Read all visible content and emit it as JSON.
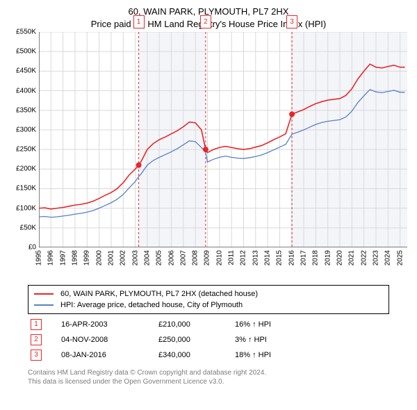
{
  "title_line1": "60, WAIN PARK, PLYMOUTH, PL7 2HX",
  "title_line2": "Price paid vs. HM Land Registry's House Price Index (HPI)",
  "title_fontsize": 13,
  "chart": {
    "type": "line",
    "background_color": "#ffffff",
    "grid_color": "#d9d9d9",
    "axis_line_color": "#000000",
    "tick_fontsize": 10,
    "x": {
      "min": 1995,
      "max": 2025.6,
      "ticks": [
        1995,
        1996,
        1997,
        1998,
        1999,
        2000,
        2001,
        2002,
        2003,
        2004,
        2005,
        2006,
        2007,
        2008,
        2009,
        2010,
        2011,
        2012,
        2013,
        2014,
        2015,
        2016,
        2017,
        2018,
        2019,
        2020,
        2021,
        2022,
        2023,
        2024,
        2025
      ],
      "tick_labels": [
        "1995",
        "1996",
        "1997",
        "1998",
        "1999",
        "2000",
        "2001",
        "2002",
        "2003",
        "2004",
        "2005",
        "2006",
        "2007",
        "2008",
        "2009",
        "2010",
        "2011",
        "2012",
        "2013",
        "2014",
        "2015",
        "2016",
        "2017",
        "2018",
        "2019",
        "2020",
        "2021",
        "2022",
        "2023",
        "2024",
        "2025"
      ]
    },
    "y": {
      "min": 0,
      "max": 550000,
      "ticks": [
        0,
        50000,
        100000,
        150000,
        200000,
        250000,
        300000,
        350000,
        400000,
        450000,
        500000,
        550000
      ],
      "tick_labels": [
        "£0",
        "£50K",
        "£100K",
        "£150K",
        "£200K",
        "£250K",
        "£300K",
        "£350K",
        "£400K",
        "£450K",
        "£500K",
        "£550K"
      ]
    },
    "series": [
      {
        "id": "property",
        "label": "60, WAIN PARK, PLYMOUTH, PL7 2HX (detached house)",
        "color": "#e8262a",
        "line_width": 1.6,
        "points": [
          [
            1995.0,
            100000
          ],
          [
            1995.5,
            101000
          ],
          [
            1996.0,
            98000
          ],
          [
            1996.5,
            100000
          ],
          [
            1997.0,
            102000
          ],
          [
            1997.5,
            105000
          ],
          [
            1998.0,
            108000
          ],
          [
            1998.5,
            110000
          ],
          [
            1999.0,
            113000
          ],
          [
            1999.5,
            118000
          ],
          [
            2000.0,
            125000
          ],
          [
            2000.5,
            133000
          ],
          [
            2001.0,
            140000
          ],
          [
            2001.5,
            150000
          ],
          [
            2002.0,
            165000
          ],
          [
            2002.5,
            185000
          ],
          [
            2003.0,
            200000
          ],
          [
            2003.29,
            210000
          ],
          [
            2003.5,
            220000
          ],
          [
            2004.0,
            250000
          ],
          [
            2004.5,
            265000
          ],
          [
            2005.0,
            275000
          ],
          [
            2005.5,
            282000
          ],
          [
            2006.0,
            290000
          ],
          [
            2006.5,
            298000
          ],
          [
            2007.0,
            308000
          ],
          [
            2007.5,
            320000
          ],
          [
            2008.0,
            318000
          ],
          [
            2008.5,
            300000
          ],
          [
            2008.85,
            250000
          ],
          [
            2009.0,
            242000
          ],
          [
            2009.5,
            250000
          ],
          [
            2010.0,
            255000
          ],
          [
            2010.5,
            258000
          ],
          [
            2011.0,
            255000
          ],
          [
            2011.5,
            252000
          ],
          [
            2012.0,
            250000
          ],
          [
            2012.5,
            252000
          ],
          [
            2013.0,
            256000
          ],
          [
            2013.5,
            260000
          ],
          [
            2014.0,
            267000
          ],
          [
            2014.5,
            275000
          ],
          [
            2015.0,
            282000
          ],
          [
            2015.5,
            290000
          ],
          [
            2016.02,
            340000
          ],
          [
            2016.5,
            346000
          ],
          [
            2017.0,
            352000
          ],
          [
            2017.5,
            360000
          ],
          [
            2018.0,
            367000
          ],
          [
            2018.5,
            372000
          ],
          [
            2019.0,
            376000
          ],
          [
            2019.5,
            378000
          ],
          [
            2020.0,
            380000
          ],
          [
            2020.5,
            388000
          ],
          [
            2021.0,
            405000
          ],
          [
            2021.5,
            430000
          ],
          [
            2022.0,
            450000
          ],
          [
            2022.5,
            468000
          ],
          [
            2023.0,
            460000
          ],
          [
            2023.5,
            458000
          ],
          [
            2024.0,
            462000
          ],
          [
            2024.5,
            465000
          ],
          [
            2025.0,
            460000
          ],
          [
            2025.4,
            460000
          ]
        ]
      },
      {
        "id": "hpi",
        "label": "HPI: Average price, detached house, City of Plymouth",
        "color": "#5a7fc4",
        "line_width": 1.3,
        "points": [
          [
            1995.0,
            78000
          ],
          [
            1995.5,
            79000
          ],
          [
            1996.0,
            77000
          ],
          [
            1996.5,
            78000
          ],
          [
            1997.0,
            80000
          ],
          [
            1997.5,
            82000
          ],
          [
            1998.0,
            85000
          ],
          [
            1998.5,
            87000
          ],
          [
            1999.0,
            90000
          ],
          [
            1999.5,
            94000
          ],
          [
            2000.0,
            100000
          ],
          [
            2000.5,
            107000
          ],
          [
            2001.0,
            114000
          ],
          [
            2001.5,
            123000
          ],
          [
            2002.0,
            135000
          ],
          [
            2002.5,
            152000
          ],
          [
            2003.0,
            168000
          ],
          [
            2003.29,
            181000
          ],
          [
            2003.5,
            188000
          ],
          [
            2004.0,
            210000
          ],
          [
            2004.5,
            222000
          ],
          [
            2005.0,
            230000
          ],
          [
            2005.5,
            237000
          ],
          [
            2006.0,
            244000
          ],
          [
            2006.5,
            252000
          ],
          [
            2007.0,
            262000
          ],
          [
            2007.5,
            272000
          ],
          [
            2008.0,
            270000
          ],
          [
            2008.5,
            255000
          ],
          [
            2008.85,
            243000
          ],
          [
            2009.0,
            218000
          ],
          [
            2009.5,
            225000
          ],
          [
            2010.0,
            230000
          ],
          [
            2010.5,
            233000
          ],
          [
            2011.0,
            230000
          ],
          [
            2011.5,
            228000
          ],
          [
            2012.0,
            227000
          ],
          [
            2012.5,
            229000
          ],
          [
            2013.0,
            232000
          ],
          [
            2013.5,
            236000
          ],
          [
            2014.0,
            242000
          ],
          [
            2014.5,
            249000
          ],
          [
            2015.0,
            256000
          ],
          [
            2015.5,
            263000
          ],
          [
            2016.02,
            289000
          ],
          [
            2016.5,
            294000
          ],
          [
            2017.0,
            300000
          ],
          [
            2017.5,
            307000
          ],
          [
            2018.0,
            314000
          ],
          [
            2018.5,
            319000
          ],
          [
            2019.0,
            322000
          ],
          [
            2019.5,
            324000
          ],
          [
            2020.0,
            326000
          ],
          [
            2020.5,
            333000
          ],
          [
            2021.0,
            348000
          ],
          [
            2021.5,
            370000
          ],
          [
            2022.0,
            387000
          ],
          [
            2022.5,
            403000
          ],
          [
            2023.0,
            397000
          ],
          [
            2023.5,
            395000
          ],
          [
            2024.0,
            398000
          ],
          [
            2024.5,
            401000
          ],
          [
            2025.0,
            396000
          ],
          [
            2025.4,
            396000
          ]
        ]
      }
    ],
    "events": [
      {
        "n": "1",
        "date_label": "16-APR-2003",
        "x": 2003.29,
        "price": 210000,
        "price_label": "£210,000",
        "diff_label": "16% ↑ HPI"
      },
      {
        "n": "2",
        "date_label": "04-NOV-2008",
        "x": 2008.85,
        "price": 250000,
        "price_label": "£250,000",
        "diff_label": "3% ↑ HPI"
      },
      {
        "n": "3",
        "date_label": "08-JAN-2016",
        "x": 2016.02,
        "price": 340000,
        "price_label": "£340,000",
        "diff_label": "18% ↑ HPI"
      }
    ],
    "event_marker_color": "#e8262a",
    "event_line_color": "#e8262a",
    "event_line_dash": "3,3",
    "event_dot_radius": 4,
    "segment_fills": [
      {
        "from": 2003.29,
        "to": 2008.85,
        "color": "#f3f5f9"
      },
      {
        "from": 2016.02,
        "to": 2025.6,
        "color": "#f3f5f9"
      }
    ]
  },
  "footer_line1": "Contains HM Land Registry data © Crown copyright and database right 2024.",
  "footer_line2": "This data is licensed under the Open Government Licence v3.0.",
  "footer_color": "#7c7c7c"
}
